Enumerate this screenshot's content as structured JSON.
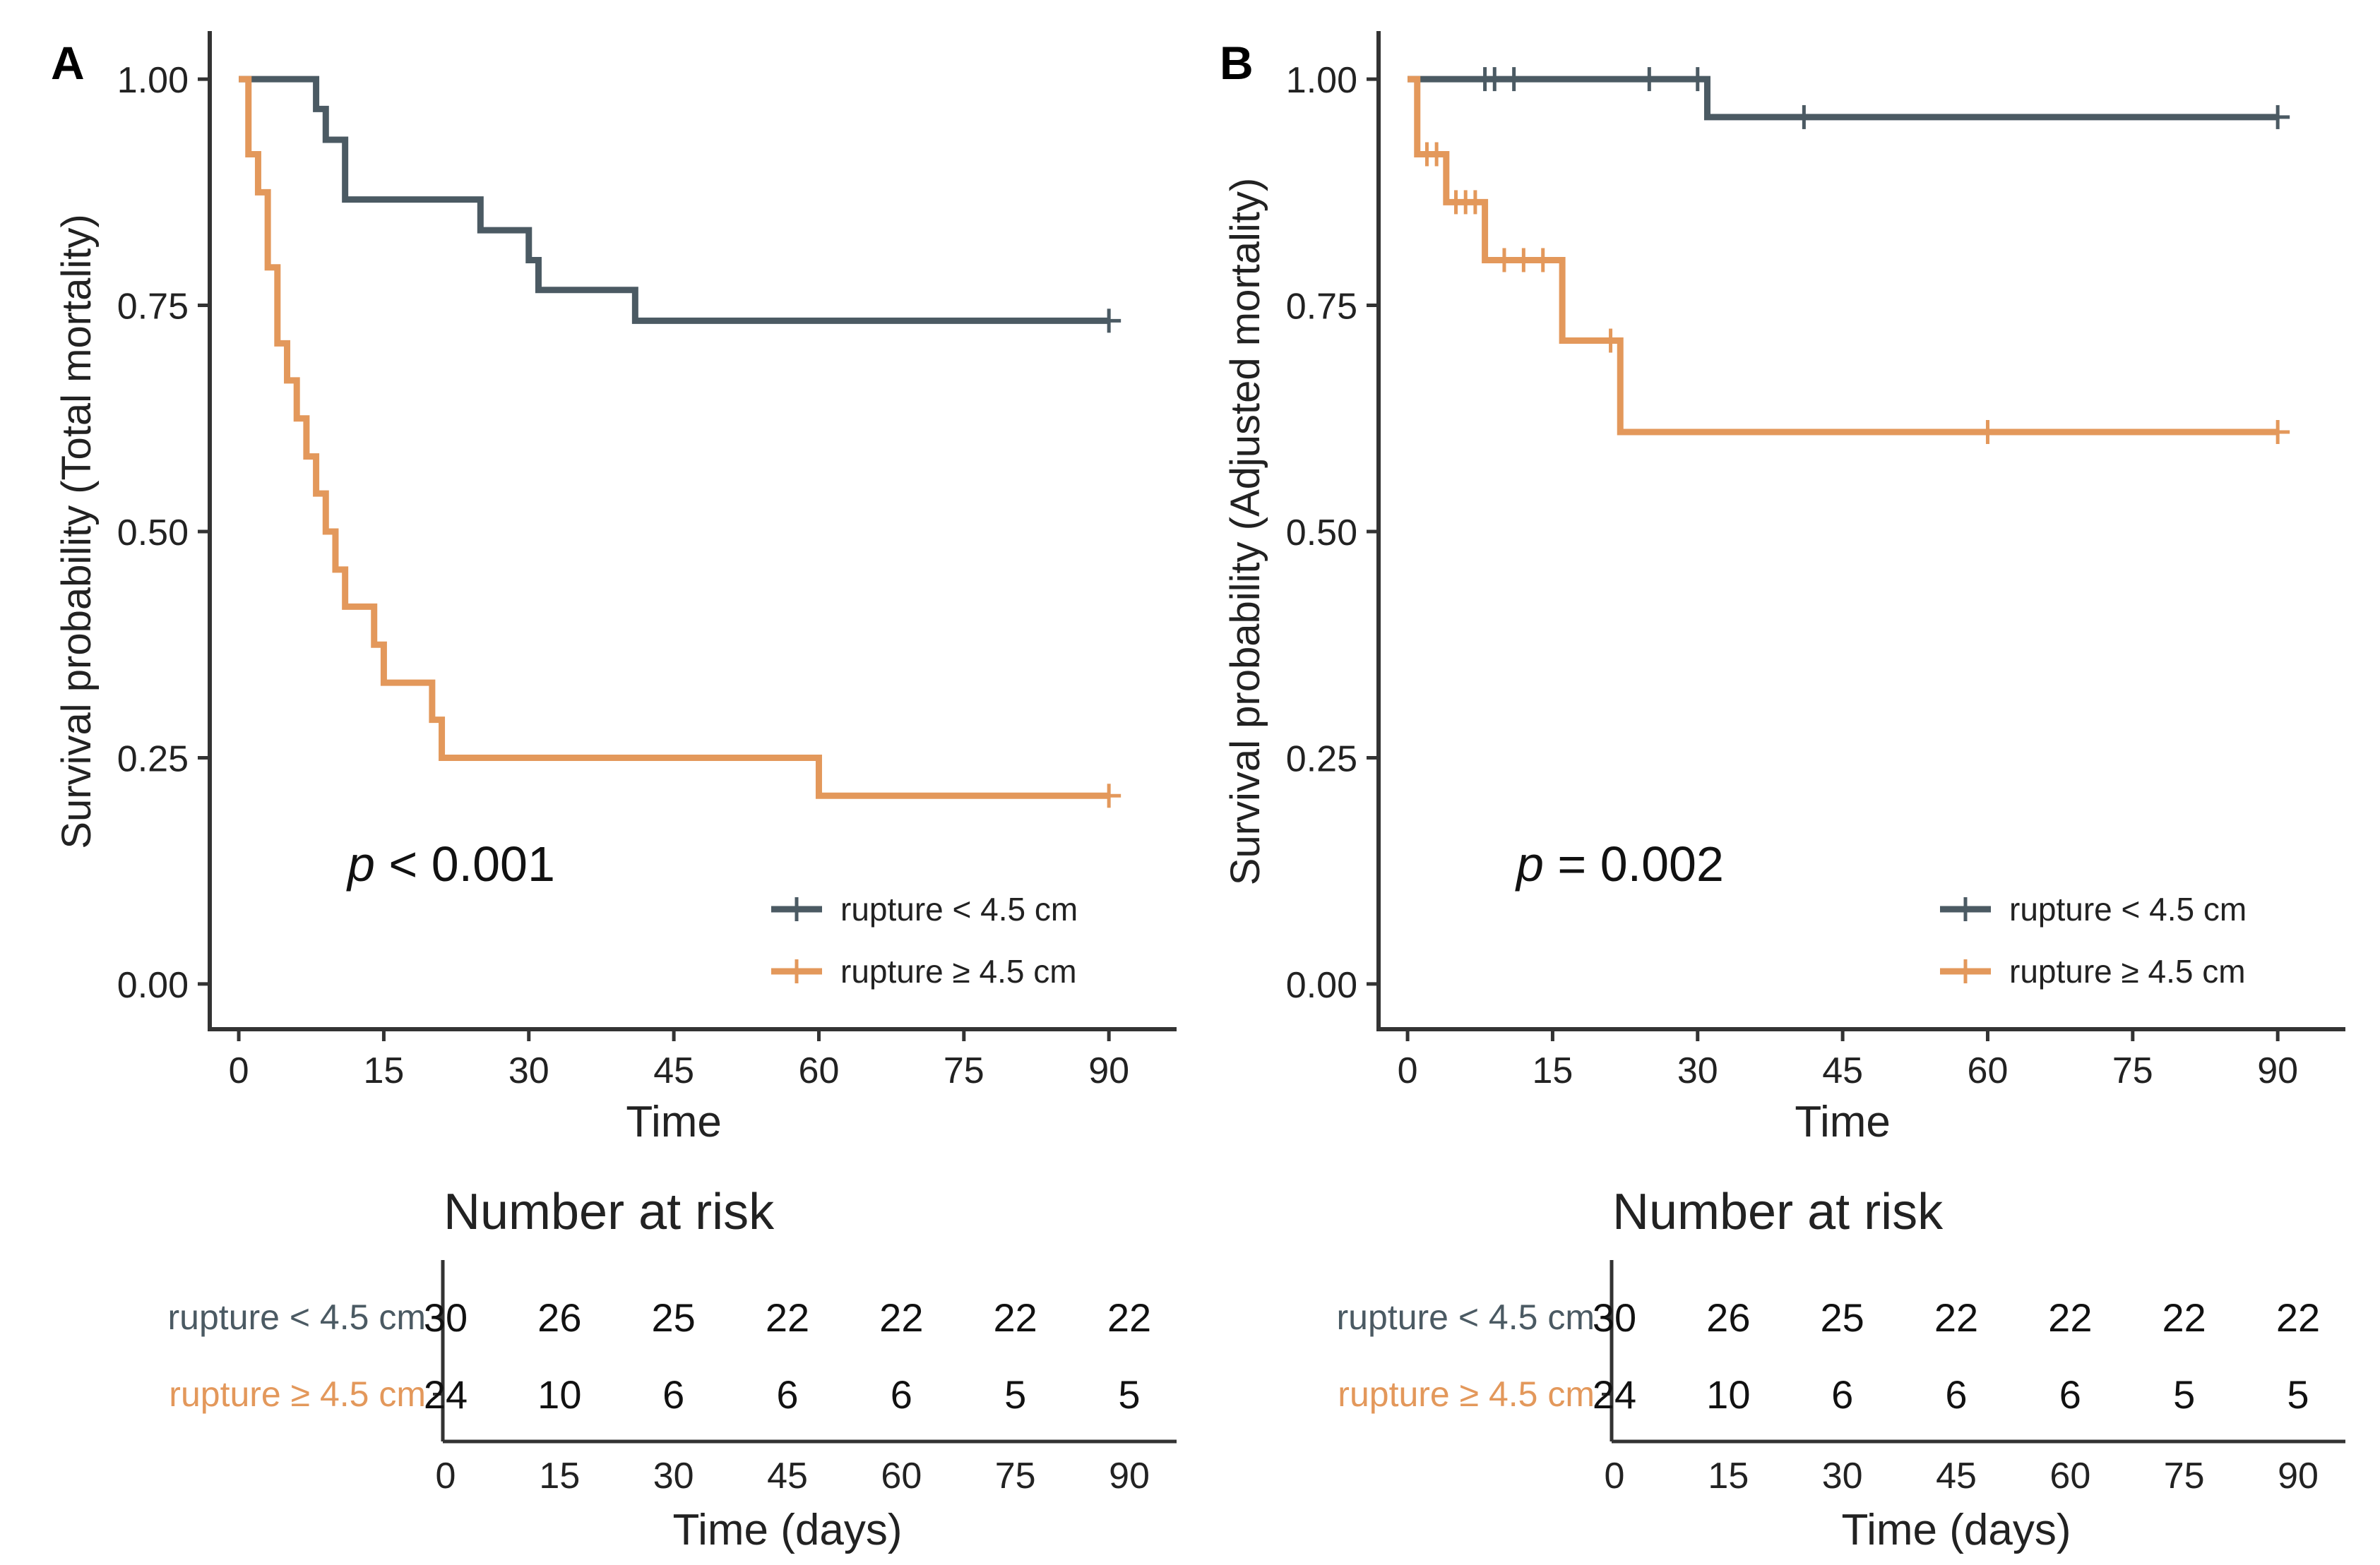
{
  "chart_data": [
    {
      "type": "line",
      "subtype": "kaplan-meier",
      "panel_label": "A",
      "title": "",
      "xlabel": "Time",
      "ylabel": "Survival probability (Total mortality)",
      "xlim": [
        -3,
        97
      ],
      "ylim": [
        -0.05,
        1.05
      ],
      "x_ticks": [
        0,
        15,
        30,
        45,
        60,
        75,
        90
      ],
      "x_tick_labels": [
        "0",
        "15",
        "30",
        "45",
        "60",
        "75",
        "90"
      ],
      "y_ticks": [
        0,
        0.25,
        0.5,
        0.75,
        1
      ],
      "y_tick_labels": [
        "0.00",
        "0.25",
        "0.50",
        "0.75",
        "1.00"
      ],
      "grid": false,
      "legend_position": "bottom-right",
      "pvalue": {
        "prefix": "p",
        "text": " < 0.001"
      },
      "series": [
        {
          "name": "rupture < 4.5 cm",
          "color": "#4b5a63",
          "x": [
            0,
            8,
            9,
            11,
            25,
            30,
            31,
            41,
            90
          ],
          "y": [
            1,
            0.967,
            0.933,
            0.867,
            0.833,
            0.8,
            0.767,
            0.733,
            0.733
          ],
          "censored": [
            [
              90,
              0.733
            ]
          ]
        },
        {
          "name": "rupture ≥ 4.5 cm",
          "color": "#e3985b",
          "x": [
            0,
            1,
            2,
            3,
            4,
            5,
            6,
            7,
            8,
            9,
            10,
            11,
            12,
            14,
            15,
            16,
            20,
            21,
            22,
            60,
            90
          ],
          "y": [
            1,
            0.917,
            0.875,
            0.792,
            0.708,
            0.667,
            0.625,
            0.583,
            0.542,
            0.5,
            0.458,
            0.417,
            0.417,
            0.375,
            0.333,
            0.333,
            0.292,
            0.25,
            0.25,
            0.208,
            0.208
          ],
          "censored": [
            [
              90,
              0.208
            ]
          ]
        }
      ],
      "risk_table": {
        "title": "Number at risk",
        "xlabel": "Time (days)",
        "times": [
          0,
          15,
          30,
          45,
          60,
          75,
          90
        ],
        "tick_labels": [
          "0",
          "15",
          "30",
          "45",
          "60",
          "75",
          "90"
        ],
        "rows": [
          {
            "label": "rupture < 4.5 cm",
            "color": "#4b5a63",
            "values": [
              "30",
              "26",
              "25",
              "22",
              "22",
              "22",
              "22"
            ]
          },
          {
            "label": "rupture ≥ 4.5 cm",
            "color": "#e3985b",
            "values": [
              "24",
              "10",
              "6",
              "6",
              "6",
              "5",
              "5"
            ]
          }
        ]
      }
    },
    {
      "type": "line",
      "subtype": "kaplan-meier",
      "panel_label": "B",
      "title": "",
      "xlabel": "Time",
      "ylabel": "Survival probability (Adjusted mortality)",
      "xlim": [
        -3,
        97
      ],
      "ylim": [
        -0.05,
        1.05
      ],
      "x_ticks": [
        0,
        15,
        30,
        45,
        60,
        75,
        90
      ],
      "x_tick_labels": [
        "0",
        "15",
        "30",
        "45",
        "60",
        "75",
        "90"
      ],
      "y_ticks": [
        0,
        0.25,
        0.5,
        0.75,
        1
      ],
      "y_tick_labels": [
        "0.00",
        "0.25",
        "0.50",
        "0.75",
        "1.00"
      ],
      "grid": false,
      "legend_position": "bottom-right",
      "pvalue": {
        "prefix": "p",
        "text": " = 0.002"
      },
      "series": [
        {
          "name": "rupture < 4.5 cm",
          "color": "#4b5a63",
          "x": [
            0,
            31,
            90
          ],
          "y": [
            1,
            0.958,
            0.958
          ],
          "censored": [
            [
              8,
              1
            ],
            [
              9,
              1
            ],
            [
              11,
              1
            ],
            [
              25,
              1
            ],
            [
              30,
              1
            ],
            [
              41,
              0.958
            ],
            [
              90,
              0.958
            ]
          ]
        },
        {
          "name": "rupture ≥ 4.5 cm",
          "color": "#e3985b",
          "x": [
            0,
            1,
            4,
            8,
            16,
            22,
            90
          ],
          "y": [
            1,
            0.917,
            0.864,
            0.8,
            0.711,
            0.61,
            0.61
          ],
          "censored": [
            [
              2,
              0.917
            ],
            [
              3,
              0.917
            ],
            [
              5,
              0.864
            ],
            [
              6,
              0.864
            ],
            [
              7,
              0.864
            ],
            [
              10,
              0.8
            ],
            [
              12,
              0.8
            ],
            [
              14,
              0.8
            ],
            [
              21,
              0.711
            ],
            [
              60,
              0.61
            ],
            [
              90,
              0.61
            ]
          ]
        }
      ],
      "risk_table": {
        "title": "Number at risk",
        "xlabel": "Time (days)",
        "times": [
          0,
          15,
          30,
          45,
          60,
          75,
          90
        ],
        "tick_labels": [
          "0",
          "15",
          "30",
          "45",
          "60",
          "75",
          "90"
        ],
        "rows": [
          {
            "label": "rupture < 4.5 cm",
            "color": "#4b5a63",
            "values": [
              "30",
              "26",
              "25",
              "22",
              "22",
              "22",
              "22"
            ]
          },
          {
            "label": "rupture ≥ 4.5 cm",
            "color": "#e3985b",
            "values": [
              "24",
              "10",
              "6",
              "6",
              "6",
              "5",
              "5"
            ]
          }
        ]
      }
    }
  ]
}
